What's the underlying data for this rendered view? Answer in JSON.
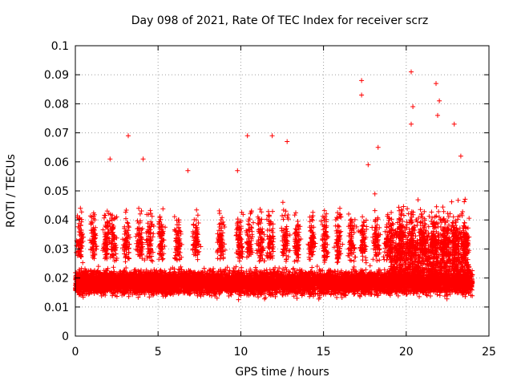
{
  "chart_data": {
    "type": "scatter",
    "title": "Day 098 of 2021, Rate Of TEC Index for receiver scrz",
    "xlabel": "GPS time / hours",
    "ylabel": "ROTI / TECUs",
    "xlim": [
      0,
      25
    ],
    "ylim": [
      0,
      0.1
    ],
    "xticks": [
      "0",
      "5",
      "10",
      "15",
      "20",
      "25"
    ],
    "yticks": [
      "0",
      "0.01",
      "0.02",
      "0.03",
      "0.04",
      "0.05",
      "0.06",
      "0.07",
      "0.08",
      "0.09",
      "0.1"
    ],
    "grid": true,
    "marker": "+",
    "color": "#ff0000",
    "series": [
      {
        "name": "ROTI",
        "x_range": [
          0,
          24
        ],
        "baseline_range": [
          0.007,
          0.03
        ],
        "outliers": [
          {
            "x": 3.2,
            "y": 0.069
          },
          {
            "x": 10.4,
            "y": 0.069
          },
          {
            "x": 11.9,
            "y": 0.069
          },
          {
            "x": 17.3,
            "y": 0.088
          },
          {
            "x": 17.3,
            "y": 0.083
          },
          {
            "x": 20.3,
            "y": 0.091
          },
          {
            "x": 20.4,
            "y": 0.079
          },
          {
            "x": 20.3,
            "y": 0.073
          },
          {
            "x": 21.8,
            "y": 0.087
          },
          {
            "x": 22.0,
            "y": 0.081
          },
          {
            "x": 21.9,
            "y": 0.076
          },
          {
            "x": 22.9,
            "y": 0.073
          },
          {
            "x": 6.8,
            "y": 0.057
          },
          {
            "x": 2.1,
            "y": 0.061
          },
          {
            "x": 4.1,
            "y": 0.061
          },
          {
            "x": 12.8,
            "y": 0.067
          },
          {
            "x": 18.3,
            "y": 0.065
          },
          {
            "x": 17.7,
            "y": 0.059
          },
          {
            "x": 9.8,
            "y": 0.057
          },
          {
            "x": 23.3,
            "y": 0.062
          }
        ]
      }
    ]
  }
}
